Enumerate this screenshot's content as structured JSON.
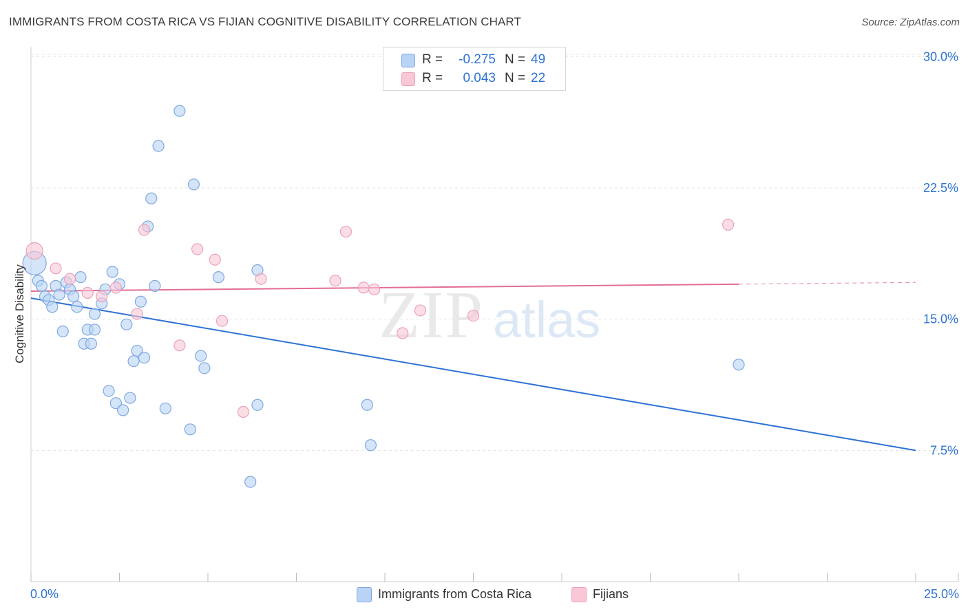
{
  "title": "IMMIGRANTS FROM COSTA RICA VS FIJIAN COGNITIVE DISABILITY CORRELATION CHART",
  "source": "Source: ZipAtlas.com",
  "watermark": {
    "zip": "ZIP",
    "atlas": "atlas"
  },
  "legend": {
    "series1": {
      "r_label": "R =",
      "r_value": "-0.275",
      "n_label": "N =",
      "n_value": "49"
    },
    "series2": {
      "r_label": "R =",
      "r_value": "0.043",
      "n_label": "N =",
      "n_value": "22"
    }
  },
  "bottom_legend": {
    "series1": "Immigrants from Costa Rica",
    "series2": "Fijians"
  },
  "colors": {
    "series1_fill": "#b9d3f5",
    "series1_stroke": "#7fa8e0",
    "series1_line": "#2e73d3",
    "series2_fill": "#f9c7d6",
    "series2_stroke": "#eca1b8",
    "series2_line": "#e36d93",
    "axis_label": "#2e73d3",
    "grid": "#e3e3e3"
  },
  "chart_data": {
    "type": "scatter",
    "title": "IMMIGRANTS FROM COSTA RICA VS FIJIAN COGNITIVE DISABILITY CORRELATION CHART",
    "xlabel": "",
    "ylabel": "Cognitive Disability",
    "xlim": [
      0,
      25
    ],
    "ylim": [
      0,
      30.8
    ],
    "x_ticks": [
      "0.0%",
      "25.0%"
    ],
    "x_tick_values": [
      0,
      25
    ],
    "y_ticks": [
      "7.5%",
      "15.0%",
      "22.5%",
      "30.0%"
    ],
    "y_tick_values": [
      7.5,
      15.0,
      22.5,
      30.0
    ],
    "grid": true,
    "legend_position": "top-center",
    "series": [
      {
        "name": "Immigrants from Costa Rica",
        "points": [
          {
            "x": 0.1,
            "y": 18.2,
            "s": 3
          },
          {
            "x": 0.2,
            "y": 17.2,
            "s": 1
          },
          {
            "x": 0.3,
            "y": 16.9,
            "s": 1
          },
          {
            "x": 0.4,
            "y": 16.3,
            "s": 1
          },
          {
            "x": 0.5,
            "y": 16.1,
            "s": 1
          },
          {
            "x": 0.6,
            "y": 15.7,
            "s": 1
          },
          {
            "x": 0.7,
            "y": 16.9,
            "s": 1
          },
          {
            "x": 0.8,
            "y": 16.4,
            "s": 1
          },
          {
            "x": 0.9,
            "y": 14.3,
            "s": 1
          },
          {
            "x": 1.0,
            "y": 17.1,
            "s": 1
          },
          {
            "x": 1.1,
            "y": 16.7,
            "s": 1
          },
          {
            "x": 1.2,
            "y": 16.3,
            "s": 1
          },
          {
            "x": 1.3,
            "y": 15.7,
            "s": 1
          },
          {
            "x": 1.4,
            "y": 17.4,
            "s": 1
          },
          {
            "x": 1.5,
            "y": 13.6,
            "s": 1
          },
          {
            "x": 1.6,
            "y": 14.4,
            "s": 1
          },
          {
            "x": 1.7,
            "y": 13.6,
            "s": 1
          },
          {
            "x": 1.8,
            "y": 15.3,
            "s": 1
          },
          {
            "x": 1.8,
            "y": 14.4,
            "s": 1
          },
          {
            "x": 2.0,
            "y": 15.9,
            "s": 1
          },
          {
            "x": 2.1,
            "y": 16.7,
            "s": 1
          },
          {
            "x": 2.2,
            "y": 10.9,
            "s": 1
          },
          {
            "x": 2.3,
            "y": 17.7,
            "s": 1
          },
          {
            "x": 2.4,
            "y": 10.2,
            "s": 1
          },
          {
            "x": 2.5,
            "y": 17.0,
            "s": 1
          },
          {
            "x": 2.6,
            "y": 9.8,
            "s": 1
          },
          {
            "x": 2.7,
            "y": 14.7,
            "s": 1
          },
          {
            "x": 2.8,
            "y": 10.5,
            "s": 1
          },
          {
            "x": 2.9,
            "y": 12.6,
            "s": 1
          },
          {
            "x": 3.0,
            "y": 13.2,
            "s": 1
          },
          {
            "x": 3.1,
            "y": 16.0,
            "s": 1
          },
          {
            "x": 3.2,
            "y": 12.8,
            "s": 1
          },
          {
            "x": 3.3,
            "y": 20.3,
            "s": 1
          },
          {
            "x": 3.4,
            "y": 21.9,
            "s": 1
          },
          {
            "x": 3.5,
            "y": 16.9,
            "s": 1
          },
          {
            "x": 3.6,
            "y": 24.9,
            "s": 1
          },
          {
            "x": 3.8,
            "y": 9.9,
            "s": 1
          },
          {
            "x": 4.2,
            "y": 26.9,
            "s": 1
          },
          {
            "x": 4.5,
            "y": 8.7,
            "s": 1
          },
          {
            "x": 4.6,
            "y": 22.7,
            "s": 1
          },
          {
            "x": 4.8,
            "y": 12.9,
            "s": 1
          },
          {
            "x": 4.9,
            "y": 12.2,
            "s": 1
          },
          {
            "x": 5.3,
            "y": 17.4,
            "s": 1
          },
          {
            "x": 6.2,
            "y": 5.7,
            "s": 1
          },
          {
            "x": 6.4,
            "y": 10.1,
            "s": 1
          },
          {
            "x": 6.4,
            "y": 17.8,
            "s": 1
          },
          {
            "x": 9.5,
            "y": 10.1,
            "s": 1
          },
          {
            "x": 9.6,
            "y": 7.8,
            "s": 1
          },
          {
            "x": 20.0,
            "y": 12.4,
            "s": 1
          }
        ],
        "trend": {
          "x": [
            0,
            25
          ],
          "y": [
            16.2,
            7.5
          ],
          "solid_to": 25
        }
      },
      {
        "name": "Fijians",
        "points": [
          {
            "x": 0.1,
            "y": 18.9,
            "s": 2
          },
          {
            "x": 0.7,
            "y": 17.9,
            "s": 1
          },
          {
            "x": 1.1,
            "y": 17.3,
            "s": 1
          },
          {
            "x": 1.6,
            "y": 16.5,
            "s": 1
          },
          {
            "x": 2.0,
            "y": 16.3,
            "s": 1
          },
          {
            "x": 2.4,
            "y": 16.8,
            "s": 1
          },
          {
            "x": 3.0,
            "y": 15.3,
            "s": 1
          },
          {
            "x": 3.2,
            "y": 20.1,
            "s": 1
          },
          {
            "x": 4.2,
            "y": 13.5,
            "s": 1
          },
          {
            "x": 4.7,
            "y": 19.0,
            "s": 1
          },
          {
            "x": 5.2,
            "y": 18.4,
            "s": 1
          },
          {
            "x": 5.4,
            "y": 14.9,
            "s": 1
          },
          {
            "x": 6.0,
            "y": 9.7,
            "s": 1
          },
          {
            "x": 6.5,
            "y": 17.3,
            "s": 1
          },
          {
            "x": 8.6,
            "y": 17.2,
            "s": 1
          },
          {
            "x": 8.9,
            "y": 20.0,
            "s": 1
          },
          {
            "x": 9.4,
            "y": 16.8,
            "s": 1
          },
          {
            "x": 9.7,
            "y": 16.7,
            "s": 1
          },
          {
            "x": 10.5,
            "y": 14.2,
            "s": 1
          },
          {
            "x": 11.0,
            "y": 15.5,
            "s": 1
          },
          {
            "x": 12.5,
            "y": 15.2,
            "s": 1
          },
          {
            "x": 19.7,
            "y": 20.4,
            "s": 1
          }
        ],
        "trend": {
          "x": [
            0,
            25
          ],
          "y": [
            16.6,
            17.1
          ],
          "solid_to": 20
        }
      }
    ]
  }
}
